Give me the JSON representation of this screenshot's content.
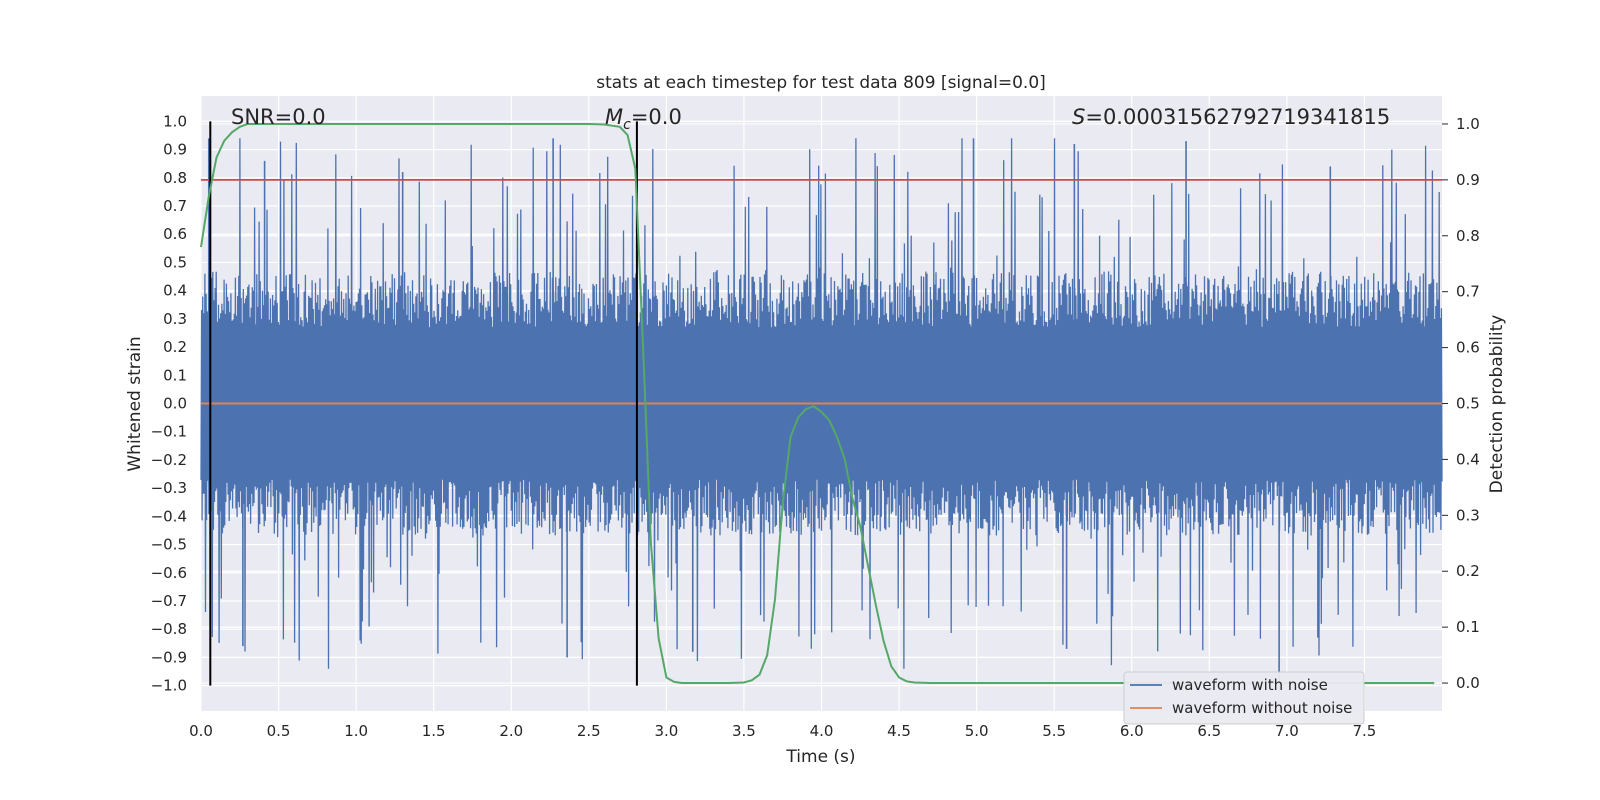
{
  "chart_data": {
    "type": "line",
    "title": "stats at each timestep for test data 809 [signal=0.0]",
    "xlabel": "Time (s)",
    "ylabel": "Whitened strain",
    "y2label": "Detection probability",
    "xlim": [
      0.0,
      8.0
    ],
    "ylim": [
      -1.09,
      1.09
    ],
    "y2lim": [
      -0.05,
      1.05
    ],
    "xticks": [
      "0.0",
      "0.5",
      "1.0",
      "1.5",
      "2.0",
      "2.5",
      "3.0",
      "3.5",
      "4.0",
      "4.5",
      "5.0",
      "5.5",
      "6.0",
      "6.5",
      "7.0",
      "7.5"
    ],
    "yticks": [
      "1.0",
      "0.9",
      "0.8",
      "0.7",
      "0.6",
      "0.5",
      "0.4",
      "0.3",
      "0.2",
      "0.1",
      "0.0",
      "−0.1",
      "−0.2",
      "−0.3",
      "−0.4",
      "−0.5",
      "−0.6",
      "−0.7",
      "−0.8",
      "−0.9",
      "−1.0"
    ],
    "y2ticks": [
      "1.0",
      "0.9",
      "0.8",
      "0.7",
      "0.6",
      "0.5",
      "0.4",
      "0.3",
      "0.2",
      "0.1",
      "0.0"
    ],
    "annotations": {
      "snr": "SNR=0.0",
      "mc_symbol": "M",
      "mc_sub": "c",
      "mc_value": "=0.0",
      "s_symbol": "S",
      "s_value": "=0.00031562792719341815"
    },
    "vertical_lines_x": [
      0.06,
      2.81
    ],
    "threshold_probability": 0.9,
    "noise_envelope": {
      "typical_amplitude": 0.36,
      "peak_amplitude": 0.94
    },
    "series": [
      {
        "name": "waveform with noise",
        "color": "#4c72b0",
        "representative_peaks": [
          {
            "x": 0.05,
            "y": 0.94
          },
          {
            "x": 0.41,
            "y": 0.86
          },
          {
            "x": 1.3,
            "y": 0.82
          },
          {
            "x": 2.27,
            "y": 0.94
          },
          {
            "x": 4.98,
            "y": 0.94
          },
          {
            "x": 5.63,
            "y": 0.92
          },
          {
            "x": 6.35,
            "y": 0.93
          },
          {
            "x": 7.28,
            "y": 0.84
          },
          {
            "x": 0.27,
            "y": -0.86
          },
          {
            "x": 2.36,
            "y": -0.9
          },
          {
            "x": 3.17,
            "y": -0.88
          },
          {
            "x": 6.95,
            "y": -1.02
          },
          {
            "x": 7.2,
            "y": -0.83
          },
          {
            "x": 5.58,
            "y": -0.87
          }
        ]
      },
      {
        "name": "waveform without noise",
        "color": "#dd8452",
        "x": [
          0.0,
          8.0
        ],
        "y": [
          0.0,
          0.0
        ]
      },
      {
        "name": "detection probability",
        "color": "#55a868",
        "axis": "right",
        "x": [
          0.0,
          0.05,
          0.1,
          0.15,
          0.2,
          0.25,
          0.3,
          0.4,
          0.6,
          1.0,
          1.5,
          2.0,
          2.5,
          2.6,
          2.7,
          2.75,
          2.8,
          2.85,
          2.9,
          2.95,
          3.0,
          3.05,
          3.1,
          3.2,
          3.4,
          3.5,
          3.55,
          3.6,
          3.65,
          3.7,
          3.75,
          3.8,
          3.85,
          3.9,
          3.95,
          4.0,
          4.05,
          4.1,
          4.15,
          4.2,
          4.25,
          4.3,
          4.35,
          4.4,
          4.45,
          4.5,
          4.55,
          4.6,
          4.7,
          5.0,
          6.0,
          7.0,
          7.95
        ],
        "y": [
          0.78,
          0.87,
          0.94,
          0.97,
          0.985,
          0.995,
          1.0,
          1.0,
          1.0,
          1.0,
          1.0,
          1.0,
          1.0,
          0.999,
          0.995,
          0.98,
          0.92,
          0.6,
          0.25,
          0.08,
          0.01,
          0.002,
          0.0,
          0.0,
          0.0,
          0.001,
          0.005,
          0.015,
          0.05,
          0.15,
          0.32,
          0.44,
          0.475,
          0.49,
          0.495,
          0.485,
          0.47,
          0.44,
          0.4,
          0.33,
          0.28,
          0.21,
          0.14,
          0.075,
          0.03,
          0.01,
          0.003,
          0.001,
          0.0,
          0.0,
          0.0,
          0.0,
          0.0
        ]
      }
    ],
    "legend_location": "lower right"
  },
  "colors": {
    "axes_bg": "#eaeaf2",
    "grid": "#ffffff",
    "noise": "#4c72b0",
    "clean": "#dd8452",
    "probability": "#55a868",
    "threshold": "#c44e52",
    "vline": "#000000"
  }
}
